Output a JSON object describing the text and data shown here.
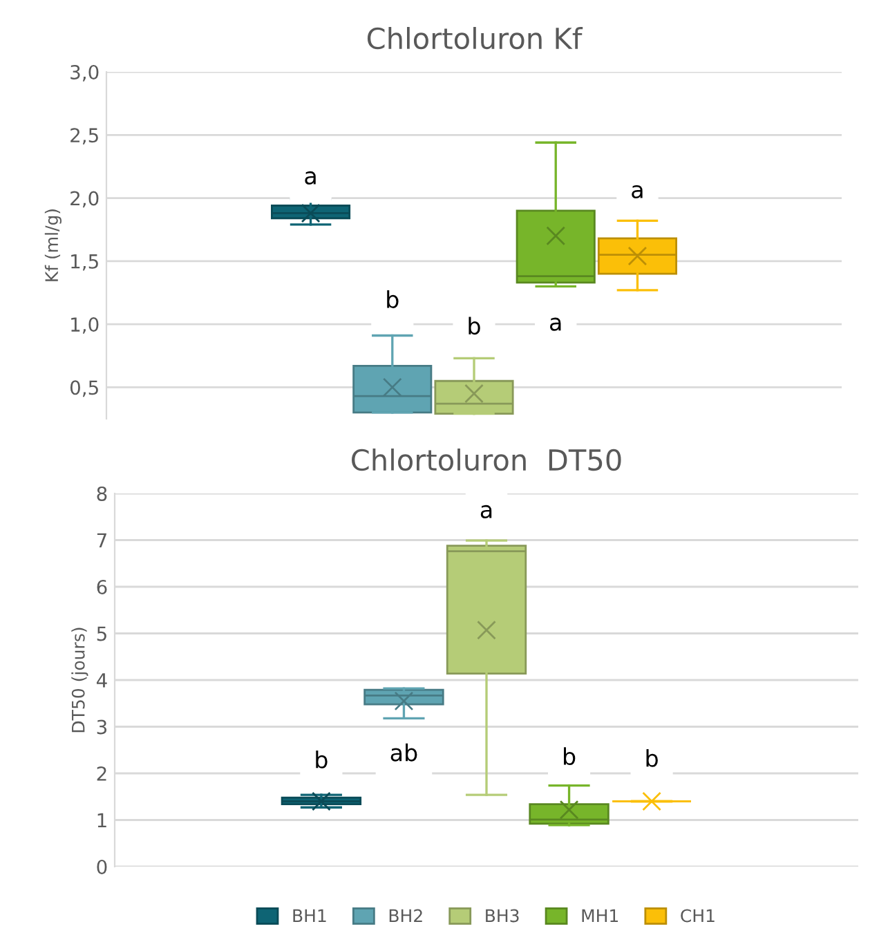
{
  "chart_data": [
    {
      "type": "box",
      "title": "Chlortoluron Kf",
      "ylabel": "Kf (ml/g)",
      "categories": [
        null
      ],
      "ylim": [
        0.25,
        3.0
      ],
      "yticks": [
        {
          "value": 0.5,
          "label": "0,5"
        },
        {
          "value": 1.0,
          "label": "1,0"
        },
        {
          "value": 1.5,
          "label": "1,5"
        },
        {
          "value": 2.0,
          "label": "2,0"
        },
        {
          "value": 2.5,
          "label": "2,5"
        },
        {
          "value": 3.0,
          "label": "3,0"
        }
      ],
      "grid": "y",
      "marker": "cross",
      "series": [
        {
          "color": "#0e6474",
          "boxes": [
            {
              "low": 1.79,
              "q1": 1.84,
              "median": 1.88,
              "q3": 1.94,
              "high": 1.99,
              "mean": 1.88
            }
          ]
        },
        {
          "color": "#5fa4b2",
          "boxes": [
            {
              "low": 0.3,
              "q1": 0.3,
              "median": 0.43,
              "q3": 0.67,
              "high": 0.91,
              "mean": 0.5
            }
          ]
        },
        {
          "color": "#b5cc77",
          "boxes": [
            {
              "low": 0.29,
              "q1": 0.29,
              "median": 0.37,
              "q3": 0.55,
              "high": 0.73,
              "mean": 0.45
            }
          ]
        },
        {
          "color": "#77b52a",
          "boxes": [
            {
              "low": 1.3,
              "q1": 1.33,
              "median": 1.38,
              "q3": 1.9,
              "high": 2.44,
              "mean": 1.7
            }
          ]
        },
        {
          "color": "#fbbf08",
          "boxes": [
            {
              "low": 1.27,
              "q1": 1.4,
              "median": 1.55,
              "q3": 1.68,
              "high": 1.82,
              "mean": 1.54
            }
          ]
        }
      ],
      "annotations": [
        {
          "text": "a",
          "y": 2.16
        },
        {
          "text": "b",
          "y": 1.18
        },
        {
          "text": "b",
          "y": 0.97
        },
        {
          "text": "a",
          "y": 1.0
        },
        {
          "text": "a",
          "y": 2.05
        }
      ]
    },
    {
      "type": "box",
      "title": "Chlortoluron  DT50",
      "ylabel": "DT50 (jours)",
      "categories": [
        null
      ],
      "ylim": [
        0,
        8
      ],
      "yticks": [
        0,
        1,
        2,
        3,
        4,
        5,
        6,
        7,
        8
      ],
      "grid": "y",
      "legend": "bottom",
      "marker": "cross",
      "series": [
        {
          "name": "BH1",
          "color": "#0e6474",
          "boxes": [
            {
              "low": 1.27,
              "q1": 1.34,
              "median": 1.4,
              "q3": 1.48,
              "high": 1.54,
              "mean": 1.4
            }
          ]
        },
        {
          "name": "BH2",
          "color": "#5fa4b2",
          "boxes": [
            {
              "low": 3.18,
              "q1": 3.48,
              "median": 3.67,
              "q3": 3.79,
              "high": 3.82,
              "mean": 3.55
            }
          ]
        },
        {
          "name": "BH3",
          "color": "#b5cc77",
          "boxes": [
            {
              "low": 1.54,
              "q1": 4.14,
              "median": 6.76,
              "q3": 6.88,
              "high": 6.99,
              "mean": 5.07
            }
          ]
        },
        {
          "name": "MH1",
          "color": "#77b52a",
          "boxes": [
            {
              "low": 0.89,
              "q1": 0.92,
              "median": 1.01,
              "q3": 1.34,
              "high": 1.74,
              "mean": 1.22
            }
          ]
        },
        {
          "name": "CH1",
          "color": "#fbbf08",
          "boxes": [
            {
              "low": 1.4,
              "q1": 1.4,
              "median": 1.4,
              "q3": 1.4,
              "high": 1.4,
              "mean": 1.4
            }
          ]
        }
      ],
      "annotations": [
        {
          "text": "b",
          "y": 2.25
        },
        {
          "text": "ab",
          "y": 2.4
        },
        {
          "text": "a",
          "y": 7.61
        },
        {
          "text": "b",
          "y": 2.32
        },
        {
          "text": "b",
          "y": 2.28
        }
      ]
    }
  ]
}
